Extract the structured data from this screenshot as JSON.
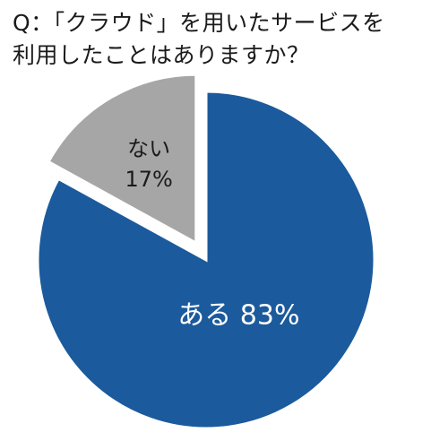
{
  "question": {
    "line1": "Q：「クラウド」を用いたサービスを",
    "line2": "利用したことはありますか？"
  },
  "chart_data": {
    "type": "pie",
    "title": "Q：「クラウド」を用いたサービスを利用したことはありますか？",
    "slices": [
      {
        "label": "ある",
        "value": 83,
        "display": "ある 83%",
        "color": "#1b5a9c",
        "exploded": false
      },
      {
        "label": "ない",
        "value": 17,
        "display_lines": [
          "ない",
          "17%"
        ],
        "color": "#a6a6a6",
        "exploded": true
      }
    ],
    "unit": "%",
    "start": "12 o'clock",
    "direction": "clockwise",
    "legend": "none"
  }
}
